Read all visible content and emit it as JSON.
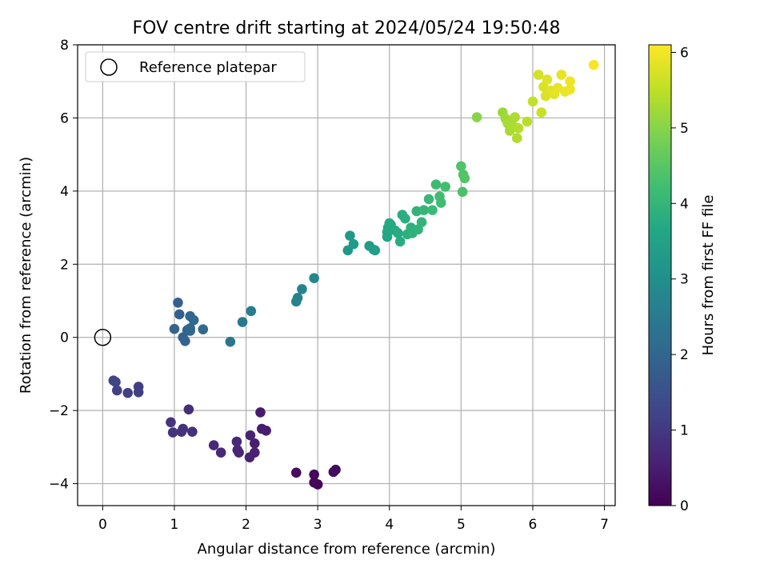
{
  "chart_data": {
    "type": "scatter",
    "title": "FOV centre drift starting at 2024/05/24 19:50:48",
    "xlabel": "Angular distance from reference (arcmin)",
    "ylabel": "Rotation from reference (arcmin)",
    "xlim": [
      -0.35,
      7.15
    ],
    "ylim": [
      -4.6,
      8.0
    ],
    "xticks": [
      0,
      1,
      2,
      3,
      4,
      5,
      6,
      7
    ],
    "yticks": [
      -4,
      -2,
      0,
      2,
      4,
      6,
      8
    ],
    "xtick_labels": [
      "0",
      "1",
      "2",
      "3",
      "4",
      "5",
      "6",
      "7"
    ],
    "ytick_labels": [
      "−4",
      "−2",
      "0",
      "2",
      "4",
      "6",
      "8"
    ],
    "grid": true,
    "legend": {
      "position": "top-left",
      "entries": [
        "Reference platepar"
      ]
    },
    "reference_point": {
      "label": "Reference platepar",
      "x": 0,
      "y": 0
    },
    "colorbar": {
      "label": "Hours from first FF file",
      "min": 0,
      "max": 6.1,
      "ticks": [
        0,
        1,
        2,
        3,
        4,
        5,
        6
      ],
      "tick_labels": [
        "0",
        "1",
        "2",
        "3",
        "4",
        "5",
        "6"
      ],
      "colormap": "viridis"
    },
    "points": [
      [
        3.0,
        -4.02,
        0.05
      ],
      [
        2.95,
        -3.97,
        0.1
      ],
      [
        2.95,
        -3.75,
        0.12
      ],
      [
        3.25,
        -3.62,
        0.15
      ],
      [
        3.22,
        -3.68,
        0.18
      ],
      [
        2.7,
        -3.7,
        0.2
      ],
      [
        2.2,
        -2.05,
        0.45
      ],
      [
        2.28,
        -2.55,
        0.48
      ],
      [
        2.22,
        -2.5,
        0.5
      ],
      [
        2.12,
        -2.9,
        0.52
      ],
      [
        2.12,
        -3.15,
        0.55
      ],
      [
        2.05,
        -3.28,
        0.58
      ],
      [
        2.06,
        -2.68,
        0.6
      ],
      [
        1.88,
        -3.08,
        0.62
      ],
      [
        1.9,
        -3.15,
        0.65
      ],
      [
        1.87,
        -2.85,
        0.68
      ],
      [
        1.65,
        -3.15,
        0.7
      ],
      [
        1.55,
        -2.95,
        0.72
      ],
      [
        1.2,
        -1.97,
        0.8
      ],
      [
        1.25,
        -2.58,
        0.82
      ],
      [
        1.12,
        -2.5,
        0.85
      ],
      [
        1.1,
        -2.58,
        0.88
      ],
      [
        0.95,
        -2.32,
        0.9
      ],
      [
        0.98,
        -2.6,
        0.92
      ],
      [
        0.5,
        -1.35,
        1.1
      ],
      [
        0.5,
        -1.5,
        1.12
      ],
      [
        0.35,
        -1.52,
        1.15
      ],
      [
        0.2,
        -1.45,
        1.18
      ],
      [
        0.18,
        -1.22,
        1.2
      ],
      [
        0.15,
        -1.18,
        1.22
      ],
      [
        1.05,
        0.95,
        1.85
      ],
      [
        1.07,
        0.63,
        1.88
      ],
      [
        1.0,
        0.23,
        1.9
      ],
      [
        1.12,
        0.0,
        1.92
      ],
      [
        1.15,
        -0.1,
        1.95
      ],
      [
        1.18,
        0.2,
        1.98
      ],
      [
        1.22,
        0.25,
        2.0
      ],
      [
        1.22,
        0.18,
        2.02
      ],
      [
        1.22,
        0.58,
        2.05
      ],
      [
        1.27,
        0.47,
        2.08
      ],
      [
        1.4,
        0.22,
        2.1
      ],
      [
        1.78,
        -0.12,
        2.4
      ],
      [
        1.95,
        0.42,
        2.5
      ],
      [
        2.07,
        0.72,
        2.55
      ],
      [
        2.7,
        0.98,
        2.7
      ],
      [
        2.72,
        1.08,
        2.72
      ],
      [
        2.78,
        1.32,
        2.75
      ],
      [
        2.95,
        1.62,
        2.8
      ],
      [
        3.42,
        2.38,
        3.2
      ],
      [
        3.45,
        2.78,
        3.25
      ],
      [
        3.5,
        2.55,
        3.28
      ],
      [
        3.72,
        2.5,
        3.35
      ],
      [
        3.78,
        2.4,
        3.38
      ],
      [
        3.8,
        2.38,
        3.4
      ],
      [
        3.97,
        2.75,
        3.6
      ],
      [
        3.97,
        2.88,
        3.62
      ],
      [
        3.98,
        3.0,
        3.65
      ],
      [
        4.0,
        3.12,
        3.68
      ],
      [
        4.02,
        3.08,
        3.7
      ],
      [
        4.08,
        2.92,
        3.72
      ],
      [
        4.12,
        2.85,
        3.75
      ],
      [
        4.15,
        2.62,
        3.78
      ],
      [
        4.18,
        3.35,
        3.8
      ],
      [
        4.22,
        3.25,
        3.82
      ],
      [
        4.25,
        2.82,
        3.85
      ],
      [
        4.3,
        3.0,
        3.88
      ],
      [
        4.32,
        2.85,
        3.9
      ],
      [
        4.38,
        3.45,
        3.92
      ],
      [
        4.4,
        2.95,
        3.95
      ],
      [
        4.45,
        3.15,
        3.98
      ],
      [
        4.48,
        3.48,
        4.0
      ],
      [
        4.55,
        3.78,
        4.05
      ],
      [
        4.6,
        3.48,
        4.1
      ],
      [
        4.65,
        4.18,
        4.15
      ],
      [
        4.7,
        3.85,
        4.18
      ],
      [
        4.72,
        3.68,
        4.2
      ],
      [
        4.78,
        4.12,
        4.25
      ],
      [
        5.02,
        3.98,
        4.35
      ],
      [
        5.0,
        4.68,
        4.4
      ],
      [
        5.03,
        4.45,
        4.42
      ],
      [
        5.05,
        4.35,
        4.45
      ],
      [
        5.22,
        6.02,
        5.0
      ],
      [
        5.58,
        6.15,
        5.2
      ],
      [
        5.62,
        5.98,
        5.25
      ],
      [
        5.65,
        5.85,
        5.28
      ],
      [
        5.68,
        5.65,
        5.3
      ],
      [
        5.72,
        5.78,
        5.32
      ],
      [
        5.75,
        6.02,
        5.35
      ],
      [
        5.78,
        5.45,
        5.38
      ],
      [
        5.8,
        5.72,
        5.4
      ],
      [
        5.92,
        5.9,
        5.45
      ],
      [
        6.0,
        6.45,
        5.55
      ],
      [
        6.12,
        6.15,
        5.6
      ],
      [
        6.08,
        7.18,
        5.7
      ],
      [
        6.15,
        6.85,
        5.75
      ],
      [
        6.18,
        6.6,
        5.78
      ],
      [
        6.2,
        7.05,
        5.8
      ],
      [
        6.25,
        6.75,
        5.82
      ],
      [
        6.3,
        6.65,
        5.85
      ],
      [
        6.35,
        6.82,
        5.88
      ],
      [
        6.4,
        7.18,
        5.9
      ],
      [
        6.45,
        6.72,
        5.92
      ],
      [
        6.52,
        6.78,
        5.95
      ],
      [
        6.52,
        7.0,
        5.98
      ],
      [
        6.85,
        7.45,
        6.05
      ]
    ]
  }
}
